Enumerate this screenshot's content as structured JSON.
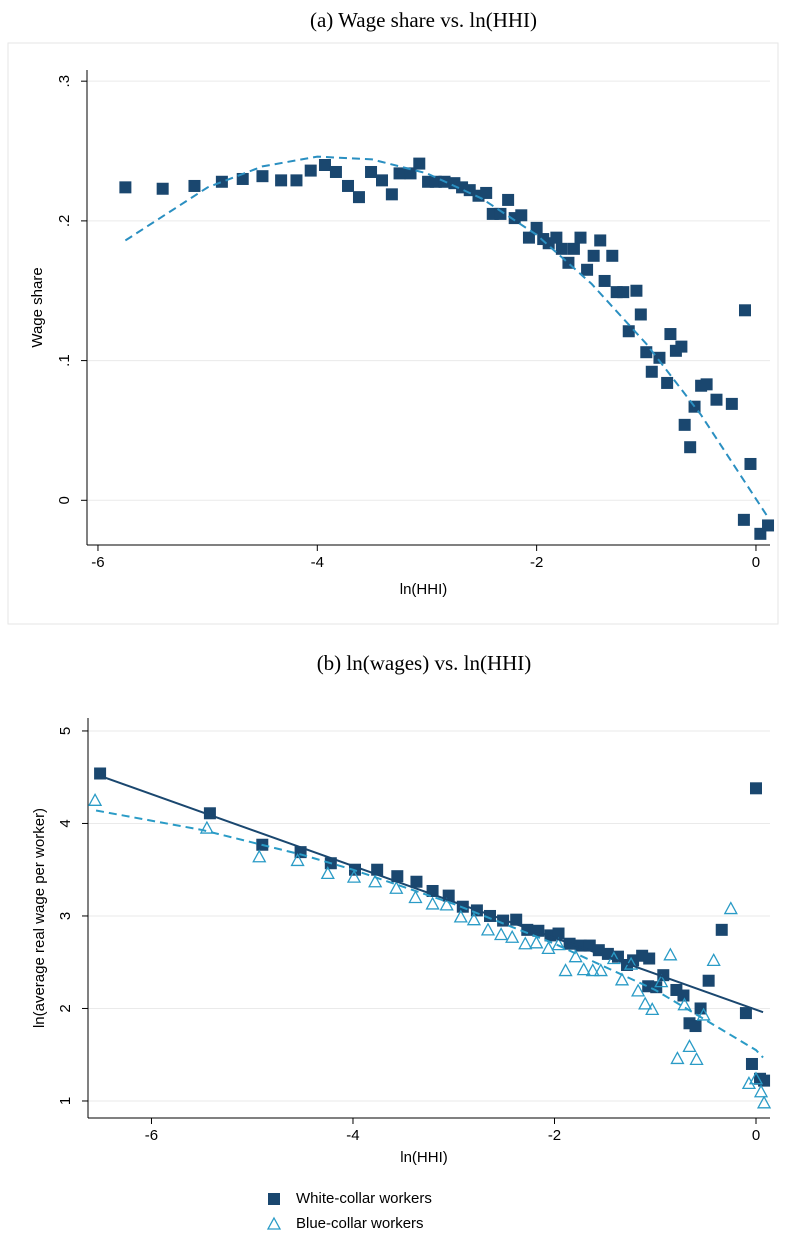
{
  "chart_data": [
    {
      "type": "scatter",
      "title": "(a) Wage share vs. ln(HHI)",
      "xlabel": "ln(HHI)",
      "ylabel": "Wage share",
      "xlim": [
        -6.1,
        0.128
      ],
      "ylim": [
        -0.032,
        0.308
      ],
      "xticks": [
        -6,
        -4,
        -2,
        0
      ],
      "yticks": [
        0,
        {
          "value": 0.1,
          "label": ".1"
        },
        {
          "value": 0.2,
          "label": ".2"
        },
        {
          "value": 0.3,
          "label": ".3"
        }
      ],
      "grid": true,
      "series": [
        {
          "color": "#1a476f",
          "marker": "square",
          "x": [
            -5.75,
            -5.41,
            -5.12,
            -4.87,
            -4.68,
            -4.5,
            -4.33,
            -4.19,
            -4.06,
            -3.93,
            -3.83,
            -3.72,
            -3.62,
            -3.51,
            -3.41,
            -3.32,
            -3.25,
            -3.15,
            -3.07,
            -2.99,
            -2.92,
            -2.84,
            -2.75,
            -2.68,
            -2.61,
            -2.53,
            -2.46,
            -2.4,
            -2.33,
            -2.26,
            -2.2,
            -2.14,
            -2.07,
            -2.0,
            -1.94,
            -1.89,
            -1.82,
            -1.77,
            -1.71,
            -1.66,
            -1.6,
            -1.54,
            -1.48,
            -1.42,
            -1.38,
            -1.31,
            -1.27,
            -1.21,
            -1.16,
            -1.09,
            -1.05,
            -1.0,
            -0.95,
            -0.88,
            -0.81,
            -0.78,
            -0.73,
            -0.68,
            -0.65,
            -0.6,
            -0.56,
            -0.5,
            -0.45,
            -0.36,
            -0.22,
            -0.1,
            -0.11,
            -0.05,
            0.04,
            0.11
          ],
          "values": [
            0.224,
            0.223,
            0.225,
            0.228,
            0.23,
            0.232,
            0.229,
            0.229,
            0.236,
            0.24,
            0.235,
            0.225,
            0.217,
            0.235,
            0.229,
            0.219,
            0.234,
            0.234,
            0.241,
            0.228,
            0.228,
            0.228,
            0.227,
            0.224,
            0.222,
            0.218,
            0.22,
            0.205,
            0.205,
            0.215,
            0.202,
            0.204,
            0.188,
            0.195,
            0.187,
            0.184,
            0.188,
            0.18,
            0.17,
            0.18,
            0.188,
            0.165,
            0.175,
            0.186,
            0.157,
            0.175,
            0.149,
            0.149,
            0.121,
            0.15,
            0.133,
            0.106,
            0.092,
            0.102,
            0.084,
            0.119,
            0.107,
            0.11,
            0.054,
            0.038,
            0.067,
            0.082,
            0.083,
            0.072,
            0.069,
            0.136,
            -0.014,
            0.026,
            -0.024,
            -0.018
          ]
        },
        {
          "color": "#2a8fc1",
          "line": "dashed",
          "x": [
            -5.75,
            -5,
            -4.5,
            -4,
            -3.5,
            -3,
            -2.5,
            -2,
            -1.5,
            -1,
            -0.5,
            0,
            0.1
          ],
          "values": [
            0.186,
            0.224,
            0.239,
            0.246,
            0.244,
            0.234,
            0.216,
            0.19,
            0.155,
            0.112,
            0.061,
            0.001,
            -0.011
          ]
        }
      ]
    },
    {
      "type": "scatter",
      "title": "(b) ln(wages) vs. ln(HHI)",
      "xlabel": "ln(HHI)",
      "ylabel": "ln(average real wage per worker)",
      "xlim": [
        -6.63,
        0.139
      ],
      "ylim": [
        0.816,
        5.14
      ],
      "xticks": [
        -6,
        -4,
        -2,
        0
      ],
      "yticks": [
        1,
        2,
        3,
        4,
        5
      ],
      "grid": true,
      "legend": "bottom",
      "series": [
        {
          "name": "White-collar workers",
          "color": "#1a476f",
          "marker": "square",
          "x": [
            -6.51,
            -5.42,
            -4.9,
            -4.52,
            -4.22,
            -3.98,
            -3.76,
            -3.56,
            -3.37,
            -3.21,
            -3.05,
            -2.91,
            -2.77,
            -2.64,
            -2.51,
            -2.38,
            -2.27,
            -2.16,
            -2.04,
            -1.96,
            -1.85,
            -1.74,
            -1.65,
            -1.56,
            -1.47,
            -1.37,
            -1.28,
            -1.22,
            -1.13,
            -1.06,
            -1.07,
            -0.99,
            -0.92,
            -0.79,
            -0.72,
            -0.66,
            -0.6,
            -0.55,
            -0.47,
            -0.34,
            -0.1,
            -0.04,
            0.0,
            0.04,
            0.08
          ],
          "values": [
            4.54,
            4.11,
            3.77,
            3.69,
            3.57,
            3.5,
            3.5,
            3.43,
            3.37,
            3.27,
            3.22,
            3.1,
            3.06,
            3.0,
            2.95,
            2.96,
            2.85,
            2.84,
            2.79,
            2.81,
            2.7,
            2.68,
            2.68,
            2.63,
            2.59,
            2.56,
            2.47,
            2.52,
            2.57,
            2.54,
            2.24,
            2.23,
            2.36,
            2.2,
            2.14,
            1.84,
            1.81,
            2.0,
            2.3,
            2.85,
            1.95,
            1.4,
            4.38,
            1.24,
            1.22
          ]
        },
        {
          "name": "Blue-collar workers",
          "color": "#2a9bc6",
          "marker": "triangle",
          "x": [
            -6.56,
            -5.45,
            -4.93,
            -4.55,
            -4.25,
            -3.99,
            -3.78,
            -3.57,
            -3.38,
            -3.21,
            -3.07,
            -2.93,
            -2.8,
            -2.66,
            -2.53,
            -2.42,
            -2.29,
            -2.18,
            -2.06,
            -1.96,
            -1.89,
            -1.79,
            -1.71,
            -1.62,
            -1.54,
            -1.41,
            -1.33,
            -1.24,
            -1.17,
            -1.1,
            -1.03,
            -0.94,
            -0.85,
            -0.78,
            -0.71,
            -0.66,
            -0.59,
            -0.52,
            -0.42,
            -0.25,
            -0.07,
            0.0,
            0.05,
            0.08
          ],
          "values": [
            4.25,
            3.95,
            3.64,
            3.6,
            3.46,
            3.42,
            3.37,
            3.3,
            3.2,
            3.13,
            3.12,
            2.99,
            2.96,
            2.85,
            2.8,
            2.77,
            2.7,
            2.71,
            2.65,
            2.69,
            2.41,
            2.56,
            2.42,
            2.41,
            2.41,
            2.54,
            2.31,
            2.48,
            2.19,
            2.05,
            1.99,
            2.29,
            2.58,
            1.46,
            2.04,
            1.59,
            1.45,
            1.93,
            2.52,
            3.08,
            1.19,
            1.24,
            1.1,
            0.98
          ]
        },
        {
          "color": "#1a476f",
          "line": "solid",
          "x": [
            -6.55,
            0.07
          ],
          "values": [
            4.53,
            1.96
          ]
        },
        {
          "color": "#2a9bc6",
          "line": "dashed",
          "x": [
            -6.55,
            -5.5,
            -4.5,
            -4,
            -3,
            -2,
            -1,
            0,
            0.07
          ],
          "values": [
            4.14,
            3.93,
            3.66,
            3.5,
            3.13,
            2.7,
            2.2,
            1.55,
            1.47
          ]
        }
      ]
    }
  ]
}
